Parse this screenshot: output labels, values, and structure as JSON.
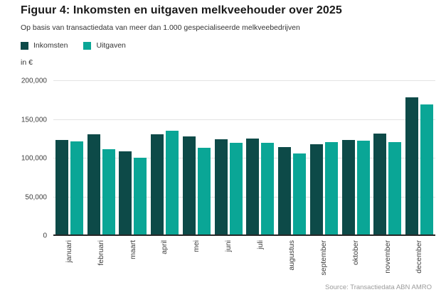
{
  "header": {
    "title": "Figuur 4: Inkomsten en uitgaven melkveehouder over 2025",
    "subtitle": "Op basis van transactiedata van meer dan 1.000 gespecialiseerde melkveebedrijven"
  },
  "chart_data": {
    "type": "bar",
    "title": "Figuur 4: Inkomsten en uitgaven melkveehouder over 2025",
    "subtitle": "Op basis van transactiedata van meer dan 1.000 gespecialiseerde melkveebedrijven",
    "unit_label": "in €",
    "categories": [
      "januari",
      "februari",
      "maart",
      "april",
      "mei",
      "juni",
      "juli",
      "augustus",
      "september",
      "oktober",
      "november",
      "december"
    ],
    "series": [
      {
        "name": "Inkomsten",
        "color": "#0d4a48",
        "values": [
          124000,
          131000,
          109000,
          131000,
          128000,
          125000,
          126000,
          115000,
          118000,
          124000,
          132000,
          179000
        ]
      },
      {
        "name": "Uitgaven",
        "color": "#0aa696",
        "values": [
          122000,
          112000,
          101000,
          136000,
          114000,
          120000,
          120000,
          106000,
          121000,
          123000,
          121000,
          170000
        ]
      }
    ],
    "ylim": [
      0,
      200000
    ],
    "yticks": [
      0,
      50000,
      100000,
      150000,
      200000
    ],
    "ytick_labels": [
      "0",
      "50,000",
      "100,000",
      "150,000",
      "200,000"
    ],
    "grid": true,
    "legend_position": "top-left"
  },
  "footer": {
    "source": "Source: Transactiedata ABN AMRO"
  }
}
